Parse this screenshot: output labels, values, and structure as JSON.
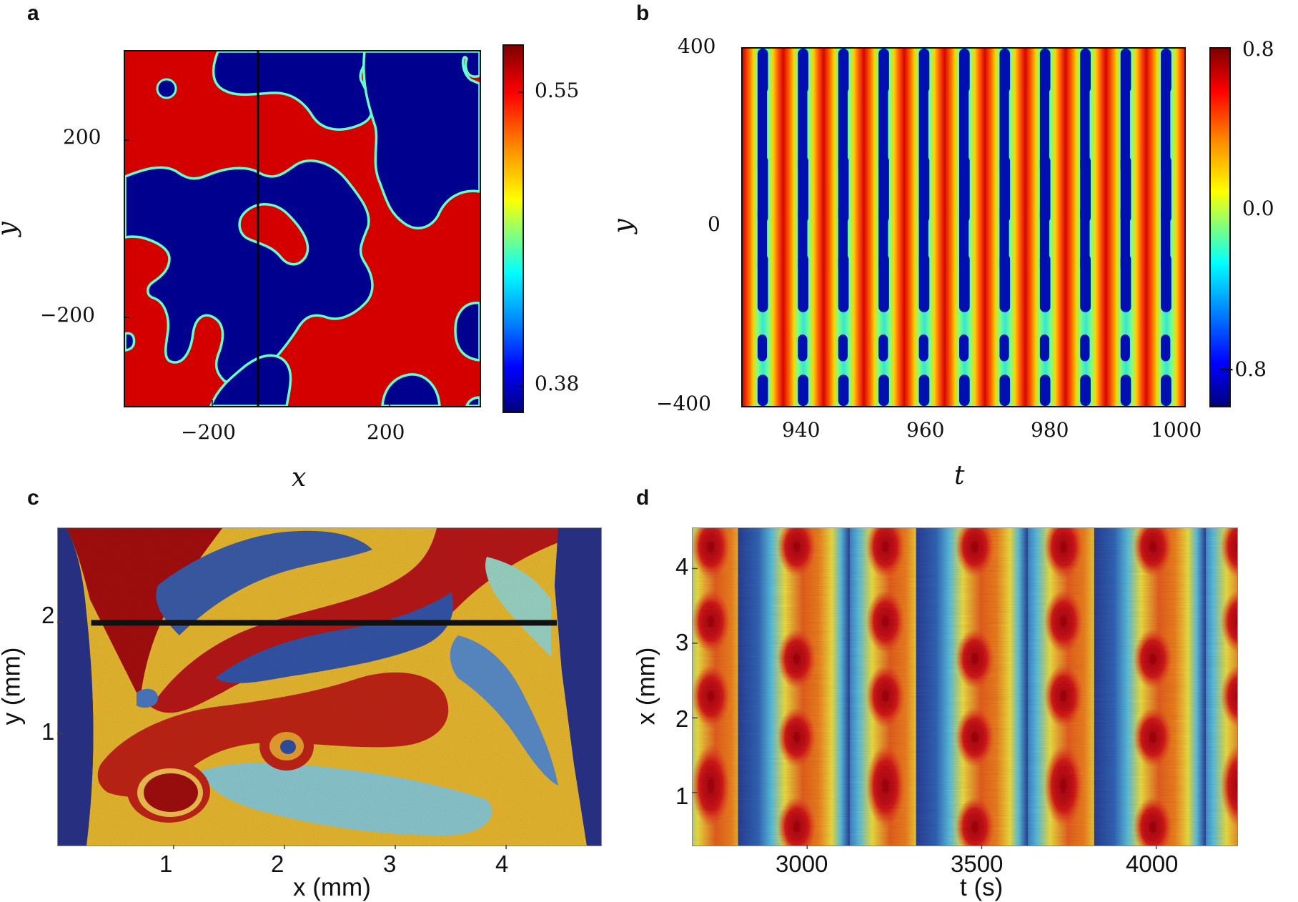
{
  "figure": {
    "panel_labels": [
      "a",
      "b",
      "c",
      "d"
    ]
  },
  "chart_data": [
    {
      "panel": "a",
      "type": "heatmap",
      "xlabel": "x",
      "ylabel": "y",
      "xticks": [
        -200,
        200
      ],
      "yticks": [
        200,
        -200
      ],
      "xtick_labels": [
        "−200",
        "200"
      ],
      "ytick_labels": [
        "200",
        "−200"
      ],
      "xlim": [
        -400,
        400
      ],
      "ylim": [
        -400,
        400
      ],
      "colorbar": {
        "ticks": [
          "0.55",
          "0.38"
        ],
        "range": [
          0.36,
          0.57
        ]
      },
      "colors": {
        "high": "#d40000",
        "low": "#00008f",
        "boundary": "#7fffd4"
      },
      "marker_line": {
        "x": -135
      }
    },
    {
      "panel": "b",
      "type": "heatmap",
      "xlabel": "t",
      "ylabel": "y",
      "xticks": [
        940,
        960,
        980,
        1000
      ],
      "yticks": [
        400,
        0,
        -400
      ],
      "xtick_labels": [
        "940",
        "960",
        "980",
        "1000"
      ],
      "ytick_labels": [
        "400",
        "0",
        "−400"
      ],
      "xlim": [
        931,
        1000
      ],
      "ylim": [
        -400,
        400
      ],
      "period": 6.3,
      "colorbar": {
        "ticks": [
          "0.8",
          "0.0",
          "−0.8"
        ],
        "range": [
          -0.9,
          0.9
        ]
      }
    },
    {
      "panel": "c",
      "type": "heatmap",
      "xlabel": "x (mm)",
      "ylabel": "y (mm)",
      "xticks": [
        1,
        2,
        3,
        4
      ],
      "yticks": [
        1,
        2
      ],
      "xtick_labels": [
        "1",
        "2",
        "3",
        "4"
      ],
      "ytick_labels": [
        "1",
        "2"
      ],
      "xlim": [
        -0.05,
        4.85
      ],
      "ylim": [
        0,
        2.85
      ],
      "marker_line": {
        "y": 2.0,
        "x_from": 0.25,
        "x_to": 4.45
      }
    },
    {
      "panel": "d",
      "type": "heatmap",
      "xlabel": "t (s)",
      "ylabel": "x (mm)",
      "xticks": [
        3000,
        3500,
        4000
      ],
      "yticks": [
        1,
        2,
        3,
        4
      ],
      "xtick_labels": [
        "3000",
        "3500",
        "4000"
      ],
      "ytick_labels": [
        "1",
        "2",
        "3",
        "4"
      ],
      "xlim": [
        2670,
        4230
      ],
      "ylim": [
        0.3,
        4.55
      ],
      "red_band_centers": [
        2710,
        3210,
        3720,
        4225
      ],
      "red_band_centers_alt": [
        2960,
        3470,
        3980
      ]
    }
  ]
}
